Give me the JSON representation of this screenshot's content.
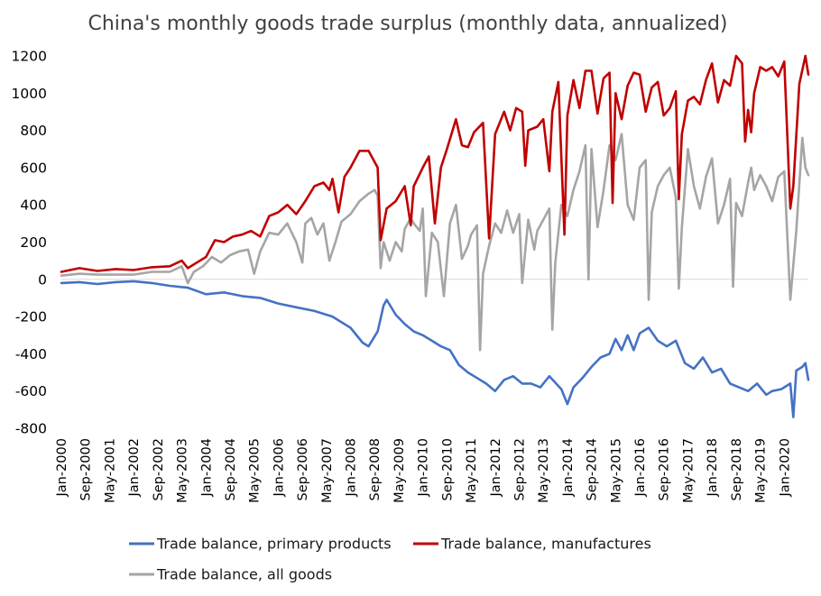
{
  "chart_data": {
    "type": "line",
    "title": "China's monthly goods trade surplus (monthly data, annualized)",
    "xlabel": "",
    "ylabel": "",
    "ylim": [
      -800,
      1200
    ],
    "yticks": [
      1200,
      1000,
      800,
      600,
      400,
      200,
      0,
      -200,
      -400,
      -600,
      -800
    ],
    "x_tick_labels": [
      "Jan-2000",
      "Sep-2000",
      "May-2001",
      "Jan-2002",
      "Sep-2002",
      "May-2003",
      "Jan-2004",
      "Sep-2004",
      "May-2005",
      "Jan-2006",
      "Sep-2006",
      "May-2007",
      "Jan-2008",
      "Sep-2008",
      "May-2009",
      "Jan-2010",
      "Sep-2010",
      "May-2011",
      "Jan-2012",
      "Sep-2012",
      "May-2013",
      "Jan-2014",
      "Sep-2014",
      "May-2015",
      "Jan-2016",
      "Sep-2016",
      "May-2017",
      "Jan-2018",
      "Sep-2018",
      "May-2019",
      "Jan-2020"
    ],
    "legend_position": "bottom",
    "grid": false,
    "series": [
      {
        "name": "Trade balance, primary products",
        "color": "#4472C4",
        "points": [
          [
            0,
            -20
          ],
          [
            6,
            -15
          ],
          [
            12,
            -25
          ],
          [
            18,
            -15
          ],
          [
            24,
            -10
          ],
          [
            30,
            -20
          ],
          [
            36,
            -35
          ],
          [
            42,
            -45
          ],
          [
            48,
            -80
          ],
          [
            54,
            -70
          ],
          [
            60,
            -90
          ],
          [
            66,
            -100
          ],
          [
            72,
            -130
          ],
          [
            78,
            -150
          ],
          [
            84,
            -170
          ],
          [
            90,
            -200
          ],
          [
            96,
            -260
          ],
          [
            100,
            -340
          ],
          [
            102,
            -360
          ],
          [
            105,
            -280
          ],
          [
            107,
            -140
          ],
          [
            108,
            -110
          ],
          [
            111,
            -190
          ],
          [
            114,
            -240
          ],
          [
            117,
            -280
          ],
          [
            120,
            -300
          ],
          [
            123,
            -330
          ],
          [
            126,
            -360
          ],
          [
            129,
            -380
          ],
          [
            132,
            -460
          ],
          [
            135,
            -500
          ],
          [
            138,
            -530
          ],
          [
            141,
            -560
          ],
          [
            144,
            -600
          ],
          [
            147,
            -540
          ],
          [
            150,
            -520
          ],
          [
            153,
            -560
          ],
          [
            156,
            -560
          ],
          [
            159,
            -580
          ],
          [
            162,
            -520
          ],
          [
            166,
            -590
          ],
          [
            168,
            -670
          ],
          [
            170,
            -580
          ],
          [
            173,
            -530
          ],
          [
            176,
            -470
          ],
          [
            179,
            -420
          ],
          [
            182,
            -400
          ],
          [
            184,
            -320
          ],
          [
            186,
            -380
          ],
          [
            188,
            -300
          ],
          [
            190,
            -380
          ],
          [
            192,
            -290
          ],
          [
            195,
            -260
          ],
          [
            198,
            -330
          ],
          [
            201,
            -360
          ],
          [
            204,
            -330
          ],
          [
            207,
            -450
          ],
          [
            210,
            -480
          ],
          [
            213,
            -420
          ],
          [
            216,
            -500
          ],
          [
            219,
            -480
          ],
          [
            222,
            -560
          ],
          [
            225,
            -580
          ],
          [
            228,
            -600
          ],
          [
            231,
            -560
          ],
          [
            234,
            -620
          ],
          [
            236,
            -600
          ],
          [
            239,
            -590
          ],
          [
            242,
            -560
          ],
          [
            243,
            -740
          ],
          [
            244,
            -490
          ],
          [
            246,
            -470
          ],
          [
            247,
            -450
          ],
          [
            248,
            -540
          ]
        ]
      },
      {
        "name": "Trade balance, manufactures",
        "color": "#C00000",
        "points": [
          [
            0,
            40
          ],
          [
            6,
            60
          ],
          [
            12,
            45
          ],
          [
            18,
            55
          ],
          [
            24,
            50
          ],
          [
            30,
            65
          ],
          [
            36,
            70
          ],
          [
            40,
            100
          ],
          [
            42,
            60
          ],
          [
            45,
            90
          ],
          [
            48,
            120
          ],
          [
            51,
            210
          ],
          [
            54,
            200
          ],
          [
            57,
            230
          ],
          [
            60,
            240
          ],
          [
            63,
            260
          ],
          [
            66,
            230
          ],
          [
            69,
            340
          ],
          [
            72,
            360
          ],
          [
            75,
            400
          ],
          [
            78,
            350
          ],
          [
            81,
            420
          ],
          [
            84,
            500
          ],
          [
            87,
            520
          ],
          [
            89,
            480
          ],
          [
            90,
            540
          ],
          [
            92,
            360
          ],
          [
            94,
            550
          ],
          [
            96,
            600
          ],
          [
            99,
            690
          ],
          [
            102,
            690
          ],
          [
            105,
            600
          ],
          [
            106,
            210
          ],
          [
            108,
            380
          ],
          [
            111,
            420
          ],
          [
            114,
            500
          ],
          [
            116,
            290
          ],
          [
            117,
            500
          ],
          [
            120,
            600
          ],
          [
            122,
            660
          ],
          [
            124,
            300
          ],
          [
            126,
            600
          ],
          [
            128,
            700
          ],
          [
            131,
            860
          ],
          [
            133,
            720
          ],
          [
            135,
            710
          ],
          [
            137,
            790
          ],
          [
            140,
            840
          ],
          [
            142,
            220
          ],
          [
            144,
            780
          ],
          [
            147,
            900
          ],
          [
            149,
            800
          ],
          [
            151,
            920
          ],
          [
            153,
            900
          ],
          [
            154,
            610
          ],
          [
            155,
            800
          ],
          [
            158,
            820
          ],
          [
            160,
            860
          ],
          [
            162,
            580
          ],
          [
            163,
            900
          ],
          [
            165,
            1060
          ],
          [
            167,
            240
          ],
          [
            168,
            880
          ],
          [
            170,
            1070
          ],
          [
            172,
            920
          ],
          [
            174,
            1120
          ],
          [
            176,
            1120
          ],
          [
            178,
            890
          ],
          [
            180,
            1080
          ],
          [
            182,
            1110
          ],
          [
            183,
            410
          ],
          [
            184,
            1000
          ],
          [
            186,
            860
          ],
          [
            188,
            1040
          ],
          [
            190,
            1110
          ],
          [
            192,
            1100
          ],
          [
            194,
            900
          ],
          [
            196,
            1030
          ],
          [
            198,
            1060
          ],
          [
            200,
            880
          ],
          [
            202,
            920
          ],
          [
            204,
            1010
          ],
          [
            205,
            430
          ],
          [
            206,
            780
          ],
          [
            208,
            960
          ],
          [
            210,
            980
          ],
          [
            212,
            940
          ],
          [
            214,
            1070
          ],
          [
            216,
            1160
          ],
          [
            218,
            950
          ],
          [
            220,
            1070
          ],
          [
            222,
            1040
          ],
          [
            224,
            1200
          ],
          [
            226,
            1160
          ],
          [
            227,
            740
          ],
          [
            228,
            910
          ],
          [
            229,
            790
          ],
          [
            230,
            1000
          ],
          [
            232,
            1140
          ],
          [
            234,
            1120
          ],
          [
            236,
            1140
          ],
          [
            238,
            1090
          ],
          [
            240,
            1170
          ],
          [
            242,
            380
          ],
          [
            243,
            500
          ],
          [
            245,
            1050
          ],
          [
            247,
            1200
          ],
          [
            248,
            1100
          ]
        ]
      },
      {
        "name": "Trade balance, all goods",
        "color": "#A5A5A5",
        "points": [
          [
            0,
            20
          ],
          [
            6,
            30
          ],
          [
            12,
            25
          ],
          [
            18,
            25
          ],
          [
            24,
            25
          ],
          [
            30,
            40
          ],
          [
            36,
            40
          ],
          [
            40,
            70
          ],
          [
            42,
            -20
          ],
          [
            44,
            40
          ],
          [
            47,
            70
          ],
          [
            50,
            120
          ],
          [
            53,
            90
          ],
          [
            56,
            130
          ],
          [
            59,
            150
          ],
          [
            62,
            160
          ],
          [
            64,
            30
          ],
          [
            66,
            150
          ],
          [
            69,
            250
          ],
          [
            72,
            240
          ],
          [
            75,
            300
          ],
          [
            78,
            200
          ],
          [
            80,
            90
          ],
          [
            81,
            300
          ],
          [
            83,
            330
          ],
          [
            85,
            240
          ],
          [
            87,
            300
          ],
          [
            89,
            100
          ],
          [
            91,
            200
          ],
          [
            93,
            310
          ],
          [
            96,
            350
          ],
          [
            99,
            420
          ],
          [
            102,
            460
          ],
          [
            104,
            480
          ],
          [
            105,
            450
          ],
          [
            106,
            60
          ],
          [
            107,
            200
          ],
          [
            109,
            100
          ],
          [
            111,
            200
          ],
          [
            113,
            150
          ],
          [
            114,
            270
          ],
          [
            116,
            330
          ],
          [
            117,
            300
          ],
          [
            119,
            260
          ],
          [
            120,
            380
          ],
          [
            121,
            -90
          ],
          [
            123,
            250
          ],
          [
            125,
            200
          ],
          [
            127,
            -90
          ],
          [
            129,
            300
          ],
          [
            131,
            400
          ],
          [
            133,
            110
          ],
          [
            135,
            180
          ],
          [
            136,
            240
          ],
          [
            138,
            290
          ],
          [
            139,
            -380
          ],
          [
            140,
            30
          ],
          [
            142,
            180
          ],
          [
            144,
            300
          ],
          [
            146,
            250
          ],
          [
            148,
            370
          ],
          [
            150,
            250
          ],
          [
            152,
            350
          ],
          [
            153,
            -20
          ],
          [
            155,
            320
          ],
          [
            157,
            160
          ],
          [
            158,
            260
          ],
          [
            160,
            320
          ],
          [
            162,
            380
          ],
          [
            163,
            -270
          ],
          [
            164,
            90
          ],
          [
            166,
            400
          ],
          [
            168,
            340
          ],
          [
            170,
            480
          ],
          [
            172,
            580
          ],
          [
            174,
            720
          ],
          [
            175,
            0
          ],
          [
            176,
            700
          ],
          [
            178,
            280
          ],
          [
            180,
            480
          ],
          [
            182,
            720
          ],
          [
            184,
            640
          ],
          [
            186,
            780
          ],
          [
            188,
            400
          ],
          [
            190,
            320
          ],
          [
            192,
            600
          ],
          [
            194,
            640
          ],
          [
            195,
            -110
          ],
          [
            196,
            360
          ],
          [
            198,
            500
          ],
          [
            200,
            560
          ],
          [
            202,
            600
          ],
          [
            204,
            440
          ],
          [
            205,
            -50
          ],
          [
            206,
            280
          ],
          [
            208,
            700
          ],
          [
            210,
            500
          ],
          [
            212,
            380
          ],
          [
            214,
            550
          ],
          [
            216,
            650
          ],
          [
            218,
            300
          ],
          [
            220,
            400
          ],
          [
            222,
            540
          ],
          [
            223,
            -40
          ],
          [
            224,
            410
          ],
          [
            226,
            340
          ],
          [
            228,
            520
          ],
          [
            229,
            600
          ],
          [
            230,
            480
          ],
          [
            232,
            560
          ],
          [
            234,
            500
          ],
          [
            236,
            420
          ],
          [
            238,
            550
          ],
          [
            240,
            580
          ],
          [
            242,
            -110
          ],
          [
            244,
            260
          ],
          [
            246,
            760
          ],
          [
            247,
            600
          ],
          [
            248,
            560
          ]
        ]
      }
    ]
  }
}
